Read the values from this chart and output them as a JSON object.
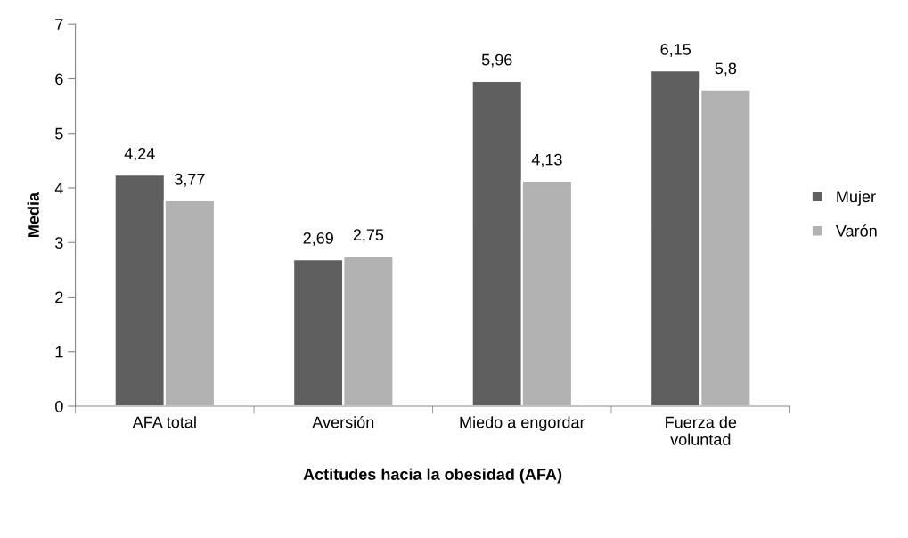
{
  "chart_data": {
    "type": "bar",
    "xlabel": "Actitudes hacia la obesidad (AFA)",
    "ylabel": "Media",
    "categories": [
      "AFA total",
      "Aversión",
      "Miedo a engordar",
      "Fuerza de\nvoluntad"
    ],
    "series": [
      {
        "name": "Mujer",
        "color": "#5f5f5f",
        "values": [
          4.24,
          2.69,
          5.96,
          6.15
        ],
        "value_labels": [
          "4,24",
          "2,69",
          "5,96",
          "6,15"
        ]
      },
      {
        "name": "Varón",
        "color": "#b2b2b2",
        "values": [
          3.77,
          2.75,
          4.13,
          5.8
        ],
        "value_labels": [
          "3,77",
          "2,75",
          "4,13",
          "5,8"
        ]
      }
    ],
    "ylim": [
      0,
      7
    ],
    "yticks": [
      0,
      1,
      2,
      3,
      4,
      5,
      6,
      7
    ],
    "grid": false,
    "legend": "right"
  }
}
